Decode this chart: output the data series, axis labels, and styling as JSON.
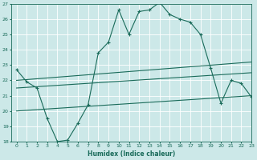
{
  "xlabel": "Humidex (Indice chaleur)",
  "bg_color": "#cce8e8",
  "line_color": "#1a6b5a",
  "grid_color": "#ffffff",
  "xlim": [
    -0.5,
    23
  ],
  "ylim": [
    18,
    27
  ],
  "yticks": [
    18,
    19,
    20,
    21,
    22,
    23,
    24,
    25,
    26,
    27
  ],
  "xticks": [
    0,
    1,
    2,
    3,
    4,
    5,
    6,
    7,
    8,
    9,
    10,
    11,
    12,
    13,
    14,
    15,
    16,
    17,
    18,
    19,
    20,
    21,
    22,
    23
  ],
  "curve1_x": [
    0,
    1,
    2,
    3,
    4,
    5,
    6,
    7,
    8,
    9,
    10,
    11,
    12,
    13,
    14,
    15,
    16,
    17,
    18,
    19,
    20,
    21,
    22,
    23
  ],
  "curve1_y": [
    22.7,
    21.9,
    21.5,
    19.5,
    18.0,
    18.1,
    19.2,
    20.4,
    23.8,
    24.5,
    26.6,
    25.0,
    26.5,
    26.6,
    27.1,
    26.3,
    26.0,
    25.8,
    25.0,
    22.8,
    20.5,
    22.0,
    21.8,
    20.9
  ],
  "curve2_x": [
    0,
    23
  ],
  "curve2_y": [
    22.0,
    23.2
  ],
  "curve3_x": [
    0,
    23
  ],
  "curve3_y": [
    21.5,
    22.5
  ],
  "curve4_x": [
    0,
    23
  ],
  "curve4_y": [
    20.0,
    21.0
  ]
}
